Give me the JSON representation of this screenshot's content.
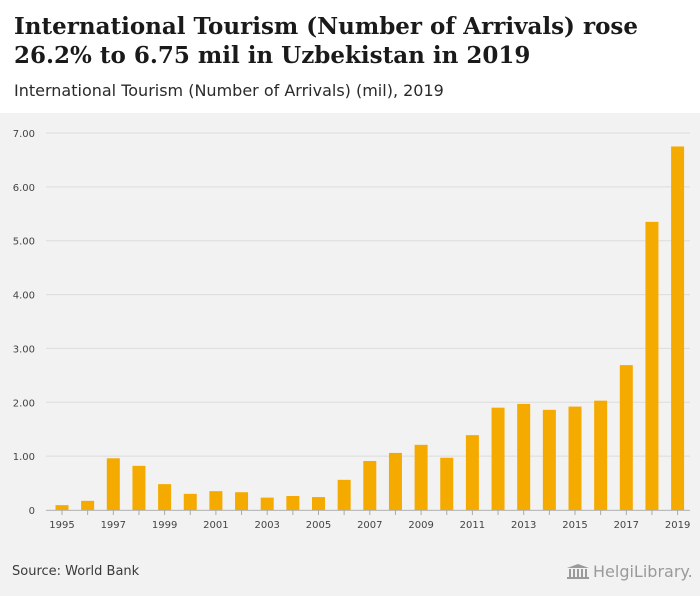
{
  "header": {
    "title": "International Tourism (Number of Arrivals) rose 26.2% to 6.75 mil in Uzbekistan in 2019",
    "subtitle": "International Tourism (Number of Arrivals) (mil), 2019"
  },
  "footer": {
    "source": "Source: World Bank",
    "logo_text": "HelgiLibrary."
  },
  "colors": {
    "bar": "#f5aa00",
    "grid": "#dcdcdc",
    "axis_text": "#444444",
    "plot_background": "#f2f2f2"
  },
  "chart_data": {
    "type": "bar",
    "title": "International Tourism (Number of Arrivals) (mil), 2019",
    "xlabel": "",
    "ylabel": "",
    "ylim": [
      0,
      7
    ],
    "yticks": [
      "0",
      "1.00",
      "2.00",
      "3.00",
      "4.00",
      "5.00",
      "6.00",
      "7.00"
    ],
    "categories": [
      "1995",
      "1996",
      "1997",
      "1998",
      "1999",
      "2000",
      "2001",
      "2002",
      "2003",
      "2004",
      "2005",
      "2006",
      "2007",
      "2008",
      "2009",
      "2010",
      "2011",
      "2012",
      "2013",
      "2014",
      "2015",
      "2016",
      "2017",
      "2018",
      "2019"
    ],
    "x_tick_labels": [
      "1995",
      "",
      "1997",
      "",
      "1999",
      "",
      "2001",
      "",
      "2003",
      "",
      "2005",
      "",
      "2007",
      "",
      "2009",
      "",
      "2011",
      "",
      "2013",
      "",
      "2015",
      "",
      "2017",
      "",
      "2019"
    ],
    "values": [
      0.09,
      0.17,
      0.96,
      0.82,
      0.48,
      0.3,
      0.35,
      0.33,
      0.23,
      0.26,
      0.24,
      0.56,
      0.91,
      1.06,
      1.21,
      0.97,
      1.39,
      1.9,
      1.97,
      1.86,
      1.92,
      2.03,
      2.69,
      5.35,
      6.75
    ],
    "grid": true,
    "legend": "none"
  }
}
